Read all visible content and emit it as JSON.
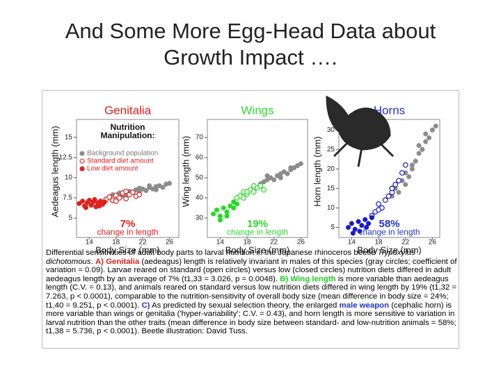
{
  "title_lines": [
    "And Some More Egg-Head Data about",
    "Growth Impact …."
  ],
  "chart_data": [
    {
      "type": "scatter",
      "title": "Genitalia",
      "title_color": "#e0201c",
      "xlabel": "Body Size (mm)",
      "ylabel": "Aedeagus length (mm)",
      "xlim": [
        12.1,
        27.4
      ],
      "xticks": [
        14,
        18,
        22,
        26
      ],
      "ylim": [
        2.6,
        17.2
      ],
      "yticks": [
        5,
        7.5,
        10,
        12.5,
        15
      ],
      "legend_title_lines": [
        "Nutrition",
        "Manipulation:"
      ],
      "annotation_percent": "7%",
      "annotation_text": "change in length",
      "annotation_color": "#e0201c",
      "series": [
        {
          "name": "Background population",
          "color": "#8c8c8c",
          "marker": "filled",
          "x": [
            17.5,
            18.5,
            19.5,
            20,
            20.5,
            21,
            21.5,
            22,
            22.5,
            23,
            23.5,
            24,
            24,
            24.5,
            25,
            25.5,
            26,
            19,
            21.5,
            23
          ],
          "values": [
            7.9,
            8.1,
            8.0,
            8.3,
            8.2,
            8.5,
            8.3,
            8.6,
            8.4,
            8.8,
            8.6,
            8.9,
            8.5,
            9.0,
            8.8,
            9.2,
            9.3,
            7.8,
            8.7,
            9.0
          ]
        },
        {
          "name": "Standard diet amount",
          "color": "#e0201c",
          "marker": "open",
          "x": [
            16.5,
            17,
            17.5,
            18,
            18.5,
            19,
            19.5,
            20,
            20.5,
            21,
            18,
            19.5,
            21.5
          ],
          "values": [
            7.3,
            7.6,
            7.2,
            7.8,
            7.5,
            8.1,
            7.4,
            7.9,
            8.2,
            7.7,
            7.1,
            8.3,
            7.9
          ]
        },
        {
          "name": "Low diet amount",
          "color": "#e0201c",
          "marker": "filled",
          "x": [
            12.5,
            13,
            13.3,
            13.7,
            14,
            14.3,
            14.6,
            15,
            15.3,
            15.7,
            16,
            13.5,
            14.8,
            15.5,
            16.3
          ],
          "values": [
            6.8,
            7.1,
            6.5,
            6.9,
            7.2,
            6.6,
            7.0,
            6.4,
            6.9,
            7.1,
            6.7,
            6.3,
            7.3,
            6.5,
            7.0
          ]
        }
      ]
    },
    {
      "type": "scatter",
      "title": "Wings",
      "title_color": "#2ed82e",
      "xlabel": "Body Size (mm)",
      "ylabel": "Wing length (mm)",
      "xlim": [
        12.1,
        27.0
      ],
      "xticks": [
        14,
        18,
        22,
        26
      ],
      "ylim": [
        20.3,
        79
      ],
      "yticks": [
        30,
        40,
        50,
        60,
        70
      ],
      "annotation_percent": "19%",
      "annotation_text": "change in length",
      "annotation_color": "#2ed82e",
      "series": [
        {
          "color": "#8c8c8c",
          "marker": "filled",
          "x": [
            20,
            20.5,
            21,
            21.5,
            22,
            22.5,
            23,
            23.5,
            24,
            24.5,
            25,
            25.5,
            26,
            21,
            23,
            24.5
          ],
          "values": [
            47,
            48,
            49,
            50,
            49,
            51,
            52,
            53,
            52,
            54,
            55,
            56,
            57,
            51,
            50,
            55
          ]
        },
        {
          "color": "#22dd22",
          "marker": "open",
          "x": [
            16.5,
            17,
            17.5,
            18,
            18.5,
            19,
            19.5,
            20,
            20.5,
            17.5,
            19,
            18
          ],
          "values": [
            40,
            41,
            43,
            42,
            44,
            43,
            45,
            46,
            44,
            40,
            46,
            43
          ]
        },
        {
          "color": "#22dd22",
          "marker": "filled",
          "x": [
            13,
            13.5,
            14,
            14.5,
            15,
            15.5,
            16,
            16.5,
            14,
            15,
            16
          ],
          "values": [
            32,
            34,
            31,
            35,
            33,
            36,
            35,
            37,
            29,
            31,
            38
          ]
        }
      ]
    },
    {
      "type": "scatter",
      "title": "Horns",
      "title_color": "#2233cc",
      "xlabel": "Body Size (mm)",
      "ylabel": "Horn length (mm)",
      "xlim": [
        12.1,
        27.1
      ],
      "xticks": [
        14,
        18,
        22,
        26
      ],
      "ylim": [
        2.4,
        32.7
      ],
      "yticks": [
        5,
        10,
        15,
        20,
        25,
        30
      ],
      "annotation_percent": "58%",
      "annotation_text": "change in length",
      "annotation_color": "#2233cc",
      "series": [
        {
          "color": "#8c8c8c",
          "marker": "filled",
          "x": [
            20,
            20.5,
            21,
            21.5,
            22,
            22.5,
            23,
            23.5,
            24,
            24.5,
            25,
            25.5,
            26,
            26.5,
            22,
            24,
            25,
            23
          ],
          "values": [
            13,
            15,
            14,
            17,
            19,
            18,
            21,
            22,
            24,
            25,
            27,
            28,
            30,
            31,
            16,
            26,
            29,
            20
          ]
        },
        {
          "color": "#1a1acc",
          "marker": "open",
          "x": [
            17,
            17.5,
            18,
            18.5,
            19,
            19.5,
            20,
            20.5,
            21,
            21.5,
            22,
            18,
            20
          ],
          "values": [
            8,
            9,
            11,
            10,
            12,
            13,
            14,
            16,
            17,
            19,
            21,
            9.5,
            15
          ]
        },
        {
          "color": "#1a1acc",
          "marker": "filled",
          "x": [
            13.5,
            14,
            14.5,
            15,
            15.5,
            16,
            16.5,
            17,
            14.2,
            15.2,
            16.2
          ],
          "values": [
            5,
            6,
            4.5,
            6.5,
            5.5,
            7,
            6,
            7.5,
            3.5,
            4,
            5
          ]
        }
      ]
    }
  ],
  "caption": [
    "Differential sensitivities of adult body parts to larval nutrition in the Japanese rhinoceros beetle ",
    "Trypoxylus dichotomous",
    ". ",
    "A) Genitalia",
    " (aedeagus) length is relatively invariant in males of this species (gray circles; coefficient of variation = 0.09). Larvae reared on standard (open circles) versus low (closed circles) nutrition diets differed in adult aedeagus length by an average of 7% (t1,33 = 3.026, p = 0.0048). ",
    "B) Wing length",
    " is more variable than aedeagus length (C.V. = 0.13), and animals reared on standard versus low nutrition diets differed in wing length by 19% (t1,32 = 7.263, p < 0.0001), comparable to the nutrition-sensitivity of overall body size (mean difference in body size = 24%; t1,40 = 9.251, p < 0.0001). ",
    "C)",
    " As predicted by sexual selection theory, the enlarged ",
    "male weapon",
    " (cephalic horn) is more variable than wings or genitalia ('hyper-variability'; C.V. = 0.43), and horn length is more sensitive to variation in larval nutrition than the other traits (mean difference in body size between standard- and low-nutrition animals = 58%; t1,38 = 5.736, p < 0.0001). Beetle illustration: David Tuss."
  ]
}
